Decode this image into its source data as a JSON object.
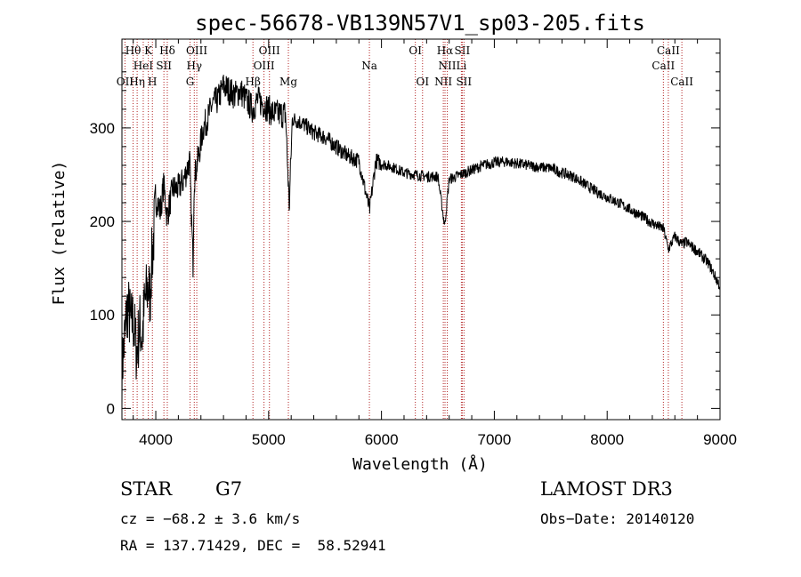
{
  "chart_data": {
    "type": "line",
    "title": "spec-56678-VB139N57V1_sp03-205.fits",
    "xlabel": "Wavelength (Å)",
    "ylabel": "Flux (relative)",
    "xlim": [
      3700,
      9000
    ],
    "ylim": [
      -12,
      395
    ],
    "x_ticks": [
      4000,
      5000,
      6000,
      7000,
      8000,
      9000
    ],
    "y_ticks": [
      0,
      100,
      200,
      300
    ],
    "line_color": "#000000",
    "marker_color": "#b22222",
    "spectrum_anchors": [
      [
        3700,
        40
      ],
      [
        3720,
        70
      ],
      [
        3750,
        110
      ],
      [
        3780,
        90
      ],
      [
        3800,
        95
      ],
      [
        3830,
        60
      ],
      [
        3860,
        90
      ],
      [
        3880,
        75
      ],
      [
        3900,
        110
      ],
      [
        3930,
        130
      ],
      [
        3950,
        120
      ],
      [
        3960,
        150
      ],
      [
        3970,
        165
      ],
      [
        3990,
        200
      ],
      [
        4010,
        225
      ],
      [
        4040,
        210
      ],
      [
        4070,
        240
      ],
      [
        4100,
        205
      ],
      [
        4150,
        235
      ],
      [
        4200,
        235
      ],
      [
        4250,
        245
      ],
      [
        4300,
        265
      ],
      [
        4330,
        155
      ],
      [
        4340,
        245
      ],
      [
        4380,
        270
      ],
      [
        4420,
        300
      ],
      [
        4460,
        310
      ],
      [
        4500,
        325
      ],
      [
        4550,
        330
      ],
      [
        4600,
        345
      ],
      [
        4650,
        340
      ],
      [
        4700,
        335
      ],
      [
        4750,
        340
      ],
      [
        4800,
        330
      ],
      [
        4860,
        320
      ],
      [
        4900,
        330
      ],
      [
        4960,
        325
      ],
      [
        5000,
        320
      ],
      [
        5050,
        315
      ],
      [
        5100,
        315
      ],
      [
        5150,
        315
      ],
      [
        5183,
        215
      ],
      [
        5210,
        310
      ],
      [
        5300,
        305
      ],
      [
        5400,
        295
      ],
      [
        5500,
        290
      ],
      [
        5600,
        280
      ],
      [
        5700,
        270
      ],
      [
        5800,
        265
      ],
      [
        5895,
        212
      ],
      [
        5950,
        265
      ],
      [
        6000,
        262
      ],
      [
        6100,
        258
      ],
      [
        6200,
        252
      ],
      [
        6300,
        250
      ],
      [
        6400,
        248
      ],
      [
        6500,
        248
      ],
      [
        6560,
        195
      ],
      [
        6600,
        245
      ],
      [
        6700,
        250
      ],
      [
        6800,
        255
      ],
      [
        6900,
        260
      ],
      [
        7000,
        263
      ],
      [
        7100,
        264
      ],
      [
        7200,
        262
      ],
      [
        7300,
        260
      ],
      [
        7400,
        258
      ],
      [
        7500,
        257
      ],
      [
        7600,
        252
      ],
      [
        7700,
        248
      ],
      [
        7800,
        240
      ],
      [
        7900,
        232
      ],
      [
        8000,
        226
      ],
      [
        8100,
        220
      ],
      [
        8200,
        213
      ],
      [
        8300,
        206
      ],
      [
        8400,
        198
      ],
      [
        8500,
        192
      ],
      [
        8542,
        170
      ],
      [
        8600,
        184
      ],
      [
        8662,
        175
      ],
      [
        8700,
        178
      ],
      [
        8800,
        168
      ],
      [
        8900,
        155
      ],
      [
        8960,
        140
      ],
      [
        9000,
        130
      ]
    ],
    "lines": [
      {
        "wavelength": 3727,
        "label": "OII",
        "row": 3
      },
      {
        "wavelength": 3799,
        "label": "Hθ",
        "row": 1
      },
      {
        "wavelength": 3835,
        "label": "Hη",
        "row": 3
      },
      {
        "wavelength": 3889,
        "label": "HeI",
        "row": 2
      },
      {
        "wavelength": 3934,
        "label": "K",
        "row": 1
      },
      {
        "wavelength": 3970,
        "label": "H",
        "row": 3
      },
      {
        "wavelength": 4072,
        "label": "SII",
        "row": 2
      },
      {
        "wavelength": 4102,
        "label": "Hδ",
        "row": 1
      },
      {
        "wavelength": 4304,
        "label": "G",
        "row": 3
      },
      {
        "wavelength": 4341,
        "label": "Hγ",
        "row": 2
      },
      {
        "wavelength": 4363,
        "label": "OIII",
        "row": 1
      },
      {
        "wavelength": 4861,
        "label": "Hβ",
        "row": 3
      },
      {
        "wavelength": 4959,
        "label": "OIII",
        "row": 2
      },
      {
        "wavelength": 5007,
        "label": "OIII",
        "row": 1
      },
      {
        "wavelength": 5175,
        "label": "Mg",
        "row": 3
      },
      {
        "wavelength": 5893,
        "label": "Na",
        "row": 2
      },
      {
        "wavelength": 6300,
        "label": "OI",
        "row": 1
      },
      {
        "wavelength": 6364,
        "label": "OI",
        "row": 3
      },
      {
        "wavelength": 6548,
        "label": "NII",
        "row": 3
      },
      {
        "wavelength": 6563,
        "label": "Hα",
        "row": 1
      },
      {
        "wavelength": 6583,
        "label": "NII",
        "row": 2
      },
      {
        "wavelength": 6708,
        "label": "Li",
        "row": 2
      },
      {
        "wavelength": 6716,
        "label": "SII",
        "row": 1
      },
      {
        "wavelength": 6731,
        "label": "SII",
        "row": 3
      },
      {
        "wavelength": 8498,
        "label": "CaII",
        "row": 2
      },
      {
        "wavelength": 8542,
        "label": "CaII",
        "row": 1
      },
      {
        "wavelength": 8662,
        "label": "CaII",
        "row": 3
      }
    ]
  },
  "info": {
    "object_type": "STAR",
    "subclass": "G7",
    "survey": "LAMOST DR3",
    "cz": "cz = −68.2 ± 3.6 km/s",
    "obs_date": "Obs−Date: 20140120",
    "coords": "RA = 137.71429, DEC =  58.52941"
  }
}
